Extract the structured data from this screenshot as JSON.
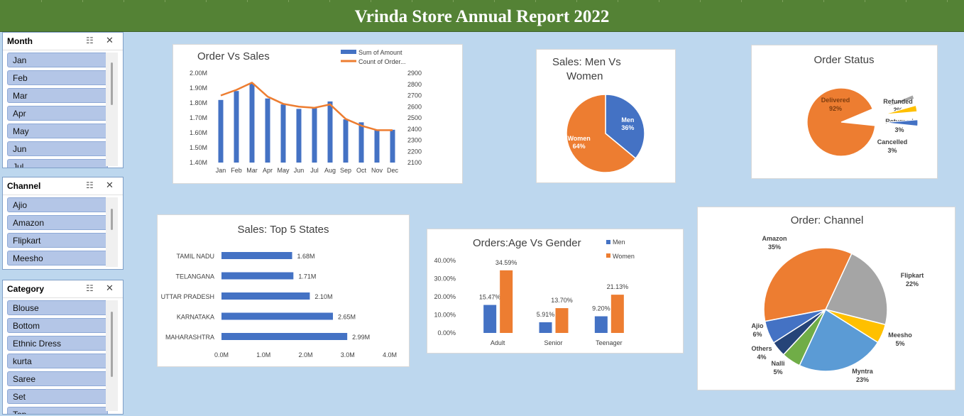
{
  "header": {
    "title": "Vrinda Store Annual Report 2022"
  },
  "colors": {
    "blue": "#4472c4",
    "orange": "#ed7d31",
    "gray": "#a5a5a5",
    "yellow": "#ffc000",
    "lightblue": "#5b9bd5",
    "green": "#70ad47",
    "navy": "#264478",
    "header_green": "#548235",
    "bg": "#bdd7ee",
    "slicer_item": "#b4c6e7"
  },
  "slicers": [
    {
      "title": "Month",
      "items": [
        "Jan",
        "Feb",
        "Mar",
        "Apr",
        "May",
        "Jun",
        "Jul"
      ]
    },
    {
      "title": "Channel",
      "items": [
        "Ajio",
        "Amazon",
        "Flipkart",
        "Meesho"
      ]
    },
    {
      "title": "Category",
      "items": [
        "Blouse",
        "Bottom",
        "Ethnic Dress",
        "kurta",
        "Saree",
        "Set",
        "Top"
      ]
    }
  ],
  "chart_data": [
    {
      "type": "bar",
      "title": "Order Vs Sales",
      "categories": [
        "Jan",
        "Feb",
        "Mar",
        "Apr",
        "May",
        "Jun",
        "Jul",
        "Aug",
        "Sep",
        "Oct",
        "Nov",
        "Dec"
      ],
      "series": [
        {
          "name": "Sum of Amount",
          "type": "bar",
          "axis": "left",
          "values": [
            1.82,
            1.88,
            1.93,
            1.83,
            1.79,
            1.76,
            1.77,
            1.81,
            1.69,
            1.67,
            1.62,
            1.62
          ]
        },
        {
          "name": "Count of Order...",
          "type": "line",
          "axis": "right",
          "values": [
            2700,
            2750,
            2815,
            2690,
            2625,
            2600,
            2590,
            2620,
            2490,
            2430,
            2390,
            2390
          ]
        }
      ],
      "ylim": [
        1.4,
        2.0
      ],
      "y2lim": [
        2100,
        2900
      ],
      "yticks": [
        "1.40M",
        "1.50M",
        "1.60M",
        "1.70M",
        "1.80M",
        "1.90M",
        "2.00M"
      ],
      "y2ticks": [
        "2100",
        "2200",
        "2300",
        "2400",
        "2500",
        "2600",
        "2700",
        "2800",
        "2900"
      ],
      "legend": "top-right"
    },
    {
      "type": "pie",
      "title": "Sales: Men Vs Women",
      "title_lines": [
        "Sales: Men Vs",
        "Women"
      ],
      "slices": [
        {
          "label": "Men",
          "value": 36,
          "text": "36%"
        },
        {
          "label": "Women",
          "value": 64,
          "text": "64%"
        }
      ]
    },
    {
      "type": "pie",
      "title": "Order Status",
      "slices": [
        {
          "label": "Delivered",
          "value": 92,
          "text": "92%"
        },
        {
          "label": "Refunded",
          "value": 2,
          "text": "2%"
        },
        {
          "label": "Returned",
          "value": 3,
          "text": "3%"
        },
        {
          "label": "Cancelled",
          "value": 3,
          "text": "3%"
        }
      ]
    },
    {
      "type": "bar",
      "orientation": "horizontal",
      "title": "Sales: Top 5 States",
      "categories": [
        "TAMIL NADU",
        "TELANGANA",
        "UTTAR PRADESH",
        "KARNATAKA",
        "MAHARASHTRA"
      ],
      "values": [
        1.68,
        1.71,
        2.1,
        2.65,
        2.99
      ],
      "value_labels": [
        "1.68M",
        "1.71M",
        "2.10M",
        "2.65M",
        "2.99M"
      ],
      "xlim": [
        0,
        4
      ],
      "xticks": [
        "0.0M",
        "1.0M",
        "2.0M",
        "3.0M",
        "4.0M"
      ]
    },
    {
      "type": "bar",
      "title": "Orders:Age Vs Gender",
      "categories": [
        "Adult",
        "Senior",
        "Teenager"
      ],
      "series": [
        {
          "name": "Men",
          "values": [
            15.47,
            5.91,
            9.2
          ],
          "labels": [
            "15.47%",
            "5.91%",
            "9.20%"
          ]
        },
        {
          "name": "Women",
          "values": [
            34.59,
            13.7,
            21.13
          ],
          "labels": [
            "34.59%",
            "13.70%",
            "21.13%"
          ]
        }
      ],
      "ylim": [
        0,
        40
      ],
      "yticks": [
        "0.00%",
        "10.00%",
        "20.00%",
        "30.00%",
        "40.00%"
      ],
      "legend": "top-right"
    },
    {
      "type": "pie",
      "title": "Order: Channel",
      "slices": [
        {
          "label": "Flipkart",
          "value": 22,
          "text": "22%"
        },
        {
          "label": "Meesho",
          "value": 5,
          "text": "5%"
        },
        {
          "label": "Myntra",
          "value": 23,
          "text": "23%"
        },
        {
          "label": "Nalli",
          "value": 5,
          "text": "5%"
        },
        {
          "label": "Others",
          "value": 4,
          "text": "4%"
        },
        {
          "label": "Ajio",
          "value": 6,
          "text": "6%"
        },
        {
          "label": "Amazon",
          "value": 35,
          "text": "35%"
        }
      ]
    }
  ]
}
